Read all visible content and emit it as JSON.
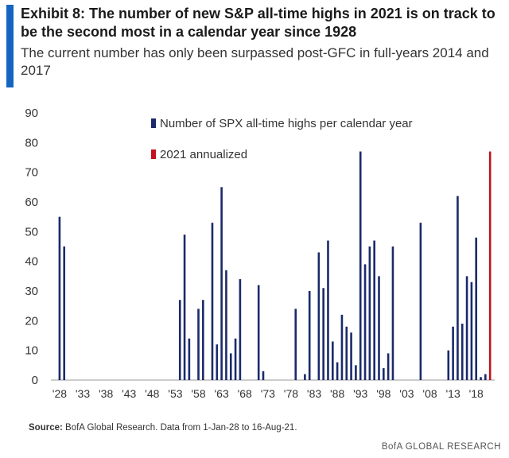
{
  "header": {
    "title": "Exhibit 8: The number of new S&P all-time highs in 2021 is on track to be the second most in a calendar year since 1928",
    "subtitle": "The current number has only been surpassed post-GFC in full-years 2014 and 2017"
  },
  "footer": {
    "source_label": "Source:",
    "source_text": "BofA Global Research. Data from 1-Jan-28 to 16-Aug-21.",
    "brand": "BofA GLOBAL RESEARCH"
  },
  "colors": {
    "accent": "#1565c0",
    "series_blue": "#1b2a6b",
    "series_red": "#c0121e"
  },
  "chart_data": {
    "type": "bar",
    "ylim": [
      0,
      90
    ],
    "yticks": [
      0,
      10,
      20,
      30,
      40,
      50,
      60,
      70,
      80,
      90
    ],
    "xlim": [
      1927.5,
      2022
    ],
    "xticks": [
      {
        "year": 1928,
        "label": "'28"
      },
      {
        "year": 1933,
        "label": "'33"
      },
      {
        "year": 1938,
        "label": "'38"
      },
      {
        "year": 1943,
        "label": "'43"
      },
      {
        "year": 1948,
        "label": "'48"
      },
      {
        "year": 1953,
        "label": "'53"
      },
      {
        "year": 1958,
        "label": "'58"
      },
      {
        "year": 1963,
        "label": "'63"
      },
      {
        "year": 1968,
        "label": "'68"
      },
      {
        "year": 1973,
        "label": "'73"
      },
      {
        "year": 1978,
        "label": "'78"
      },
      {
        "year": 1983,
        "label": "'83"
      },
      {
        "year": 1988,
        "label": "'88"
      },
      {
        "year": 1993,
        "label": "'93"
      },
      {
        "year": 1998,
        "label": "'98"
      },
      {
        "year": 2003,
        "label": "'03"
      },
      {
        "year": 2008,
        "label": "'08"
      },
      {
        "year": 2013,
        "label": "'13"
      },
      {
        "year": 2018,
        "label": "'18"
      }
    ],
    "legend_position": "top-center",
    "series": [
      {
        "name": "Number of SPX all-time highs per calendar year",
        "color": "#1b2a6b",
        "x": [
          1928,
          1929,
          1954,
          1955,
          1956,
          1958,
          1959,
          1961,
          1962,
          1963,
          1964,
          1965,
          1966,
          1967,
          1971,
          1972,
          1979,
          1981,
          1982,
          1984,
          1985,
          1986,
          1987,
          1988,
          1989,
          1990,
          1991,
          1992,
          1993,
          1994,
          1995,
          1996,
          1997,
          1998,
          1999,
          2000,
          2006,
          2012,
          2013,
          2014,
          2015,
          2016,
          2017,
          2018,
          2019,
          2020
        ],
        "values": [
          55,
          45,
          27,
          49,
          14,
          24,
          27,
          53,
          12,
          65,
          37,
          9,
          14,
          34,
          32,
          3,
          24,
          2,
          30,
          43,
          31,
          47,
          13,
          6,
          22,
          18,
          16,
          5,
          77,
          39,
          45,
          47,
          35,
          4,
          9,
          45,
          53,
          10,
          18,
          62,
          19,
          35,
          33,
          48,
          1,
          2
        ]
      },
      {
        "name": "2021 annualized",
        "color": "#c0121e",
        "x": [
          2021
        ],
        "values": [
          77
        ]
      }
    ]
  }
}
